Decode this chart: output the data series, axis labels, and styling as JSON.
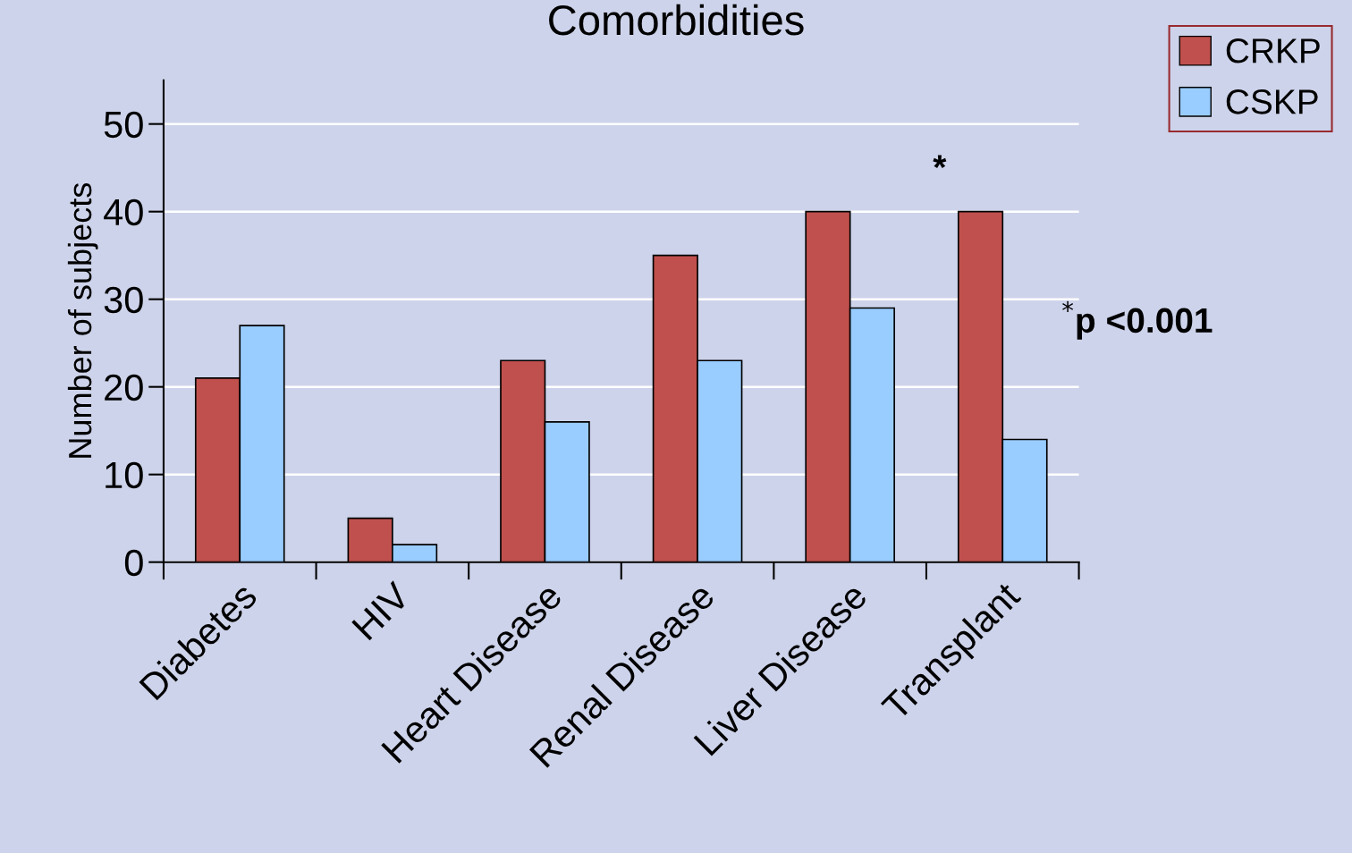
{
  "chart_data": {
    "type": "bar",
    "title": "Comorbidities",
    "ylabel": "Number of subjects",
    "categories": [
      "Diabetes",
      "HIV",
      "Heart Disease",
      "Renal Disease",
      "Liver Disease",
      "Transplant"
    ],
    "series": [
      {
        "name": "CRKP",
        "color": "#c0504d",
        "values": [
          21,
          5,
          23,
          35,
          40,
          40
        ]
      },
      {
        "name": "CSKP",
        "color": "#99ccff",
        "values": [
          27,
          2,
          16,
          23,
          29,
          14
        ]
      }
    ],
    "ylim": [
      0,
      55
    ],
    "yticks": [
      0,
      10,
      20,
      30,
      40,
      50
    ],
    "grid": "y",
    "legend": "top right",
    "annotations": [
      "*",
      "$^{*}$p <0.001"
    ]
  }
}
